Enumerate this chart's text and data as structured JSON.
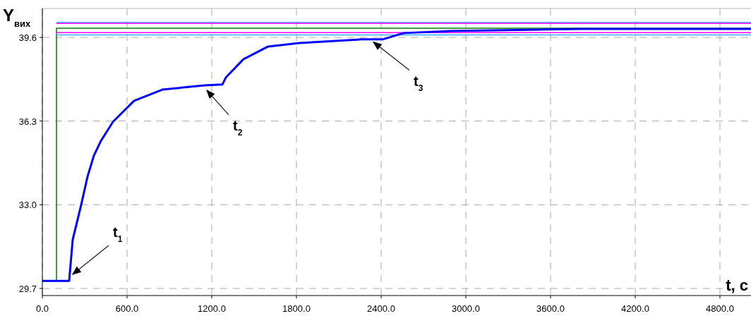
{
  "chart_data": {
    "type": "line",
    "xlabel": "t, с",
    "ylabel": "Y$_{вих}$",
    "xlim": [
      0,
      5020
    ],
    "ylim": [
      29.42,
      40.74
    ],
    "xticks": [
      {
        "value": 0,
        "label": "0.0"
      },
      {
        "value": 600,
        "label": "600.0"
      },
      {
        "value": 1200,
        "label": "1200.0"
      },
      {
        "value": 1800,
        "label": "1800.0"
      },
      {
        "value": 2400,
        "label": "2400.0"
      },
      {
        "value": 3000,
        "label": "3000.0"
      },
      {
        "value": 3600,
        "label": "3600.0"
      },
      {
        "value": 4200,
        "label": "4200.0"
      },
      {
        "value": 4800,
        "label": "4800.0"
      }
    ],
    "yticks": [
      {
        "value": 29.7,
        "label": "29.7"
      },
      {
        "value": 33,
        "label": "33.0"
      },
      {
        "value": 36.3,
        "label": "36.3"
      },
      {
        "value": 39.6,
        "label": "39.6"
      }
    ],
    "grid": true,
    "line_style": "solid",
    "marker": "none",
    "series": [
      {
        "color": "#33aaff",
        "x": [
          100,
          5020
        ],
        "values": [
          40.19,
          40.19
        ]
      },
      {
        "color": "#ff00ff",
        "x": [
          100,
          5020
        ],
        "values": [
          40.15,
          40.15
        ]
      },
      {
        "color": "#008000",
        "x": [
          100,
          100,
          5020
        ],
        "values": [
          30.0,
          39.96,
          39.96
        ]
      },
      {
        "color": "#ff00ff",
        "x": [
          100,
          5020
        ],
        "values": [
          39.79,
          39.79
        ]
      },
      {
        "color": "#33aaff",
        "x": [
          100,
          5020
        ],
        "values": [
          39.7,
          39.7
        ]
      },
      {
        "color": "#0000ff",
        "x": [
          0,
          190,
          215,
          275,
          320,
          365,
          415,
          500,
          650,
          850,
          1150,
          1275,
          1300,
          1425,
          1600,
          1820,
          2255,
          2410,
          2560,
          2890,
          3565,
          3825,
          5020
        ],
        "values": [
          30.0,
          30.0,
          31.62,
          33.0,
          34.11,
          34.94,
          35.52,
          36.27,
          37.1,
          37.54,
          37.71,
          37.74,
          38.02,
          38.74,
          39.24,
          39.38,
          39.52,
          39.52,
          39.77,
          39.85,
          39.91,
          39.93,
          39.93
        ]
      }
    ],
    "annotations": [
      {
        "text": "t$_{1}$",
        "x": 200,
        "y": 30.2
      },
      {
        "text": "t$_{2}$",
        "x": 1150,
        "y": 37.6
      },
      {
        "text": "t$_{3}$",
        "x": 2330,
        "y": 39.5
      }
    ]
  }
}
